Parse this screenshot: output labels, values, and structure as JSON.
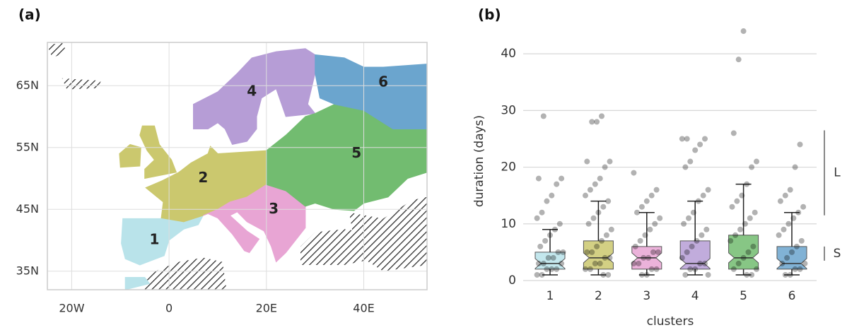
{
  "chart_data": [
    {
      "type": "map",
      "panel_label": "(a)",
      "xlim": [
        -25,
        53
      ],
      "ylim": [
        32,
        72
      ],
      "xticks": [
        {
          "value": -20,
          "label": "20W"
        },
        0,
        {
          "value": 20,
          "label": "20E"
        },
        {
          "value": 40,
          "label": "40E"
        }
      ],
      "yticks": [
        {
          "value": 35,
          "label": "35N"
        },
        {
          "value": 45,
          "label": "45N"
        },
        {
          "value": 55,
          "label": "55N"
        },
        {
          "value": 65,
          "label": "65N"
        }
      ],
      "grid": true,
      "regions": [
        {
          "name": "1",
          "color": "#b9e3ea"
        },
        {
          "name": "2",
          "color": "#cbc86e"
        },
        {
          "name": "3",
          "color": "#e8a5d4"
        },
        {
          "name": "4",
          "color": "#b69dd6"
        },
        {
          "name": "5",
          "color": "#72bc70"
        },
        {
          "name": "6",
          "color": "#6ba5ce"
        }
      ]
    },
    {
      "type": "box",
      "panel_label": "(b)",
      "x_label": "clusters",
      "y_label": "duration (days)",
      "categories": [
        "1",
        "2",
        "3",
        "4",
        "5",
        "6"
      ],
      "ylim": [
        -1,
        46
      ],
      "yticks": [
        0,
        10,
        20,
        30,
        40
      ],
      "grid": true,
      "boxes": [
        {
          "color": "#b9e3ea",
          "whislo": 1,
          "q1": 2,
          "median": 3,
          "q3": 5,
          "whishi": 9,
          "points": [
            1,
            1,
            2,
            2,
            2,
            3,
            3,
            3,
            4,
            4,
            5,
            5,
            6,
            7,
            8,
            9,
            10,
            11,
            12,
            14,
            15,
            17,
            18,
            18,
            29
          ]
        },
        {
          "color": "#cbc86e",
          "whislo": 1,
          "q1": 2,
          "median": 4,
          "q3": 7,
          "whishi": 14,
          "points": [
            1,
            1,
            2,
            2,
            3,
            3,
            4,
            4,
            5,
            5,
            6,
            7,
            8,
            9,
            10,
            11,
            12,
            13,
            14,
            15,
            16,
            17,
            18,
            20,
            21,
            21,
            28,
            28,
            29
          ]
        },
        {
          "color": "#e8a5d4",
          "whislo": 1,
          "q1": 2,
          "median": 4,
          "q3": 6,
          "whishi": 12,
          "points": [
            1,
            1,
            2,
            2,
            3,
            3,
            4,
            4,
            5,
            5,
            6,
            7,
            8,
            9,
            10,
            11,
            12,
            13,
            14,
            15,
            16,
            19
          ]
        },
        {
          "color": "#b69dd6",
          "whislo": 1,
          "q1": 2,
          "median": 3,
          "q3": 7,
          "whishi": 14,
          "points": [
            1,
            1,
            2,
            2,
            3,
            3,
            4,
            5,
            6,
            7,
            8,
            9,
            10,
            11,
            12,
            14,
            15,
            16,
            20,
            21,
            23,
            24,
            25,
            25,
            25
          ]
        },
        {
          "color": "#72bc70",
          "whislo": 1,
          "q1": 2,
          "median": 4,
          "q3": 8,
          "whishi": 17,
          "points": [
            1,
            1,
            2,
            2,
            3,
            4,
            5,
            6,
            7,
            8,
            9,
            10,
            11,
            12,
            13,
            14,
            15,
            17,
            20,
            21,
            26,
            39,
            44
          ]
        },
        {
          "color": "#6ba5ce",
          "whislo": 1,
          "q1": 2,
          "median": 3,
          "q3": 6,
          "whishi": 12,
          "points": [
            1,
            1,
            2,
            2,
            3,
            3,
            4,
            5,
            6,
            7,
            8,
            9,
            10,
            11,
            12,
            13,
            14,
            15,
            16,
            20,
            24
          ]
        }
      ],
      "annotations": [
        {
          "label": "L",
          "range": [
            11.5,
            26.5
          ]
        },
        {
          "label": "S",
          "range": [
            3.5,
            6
          ]
        }
      ]
    }
  ]
}
